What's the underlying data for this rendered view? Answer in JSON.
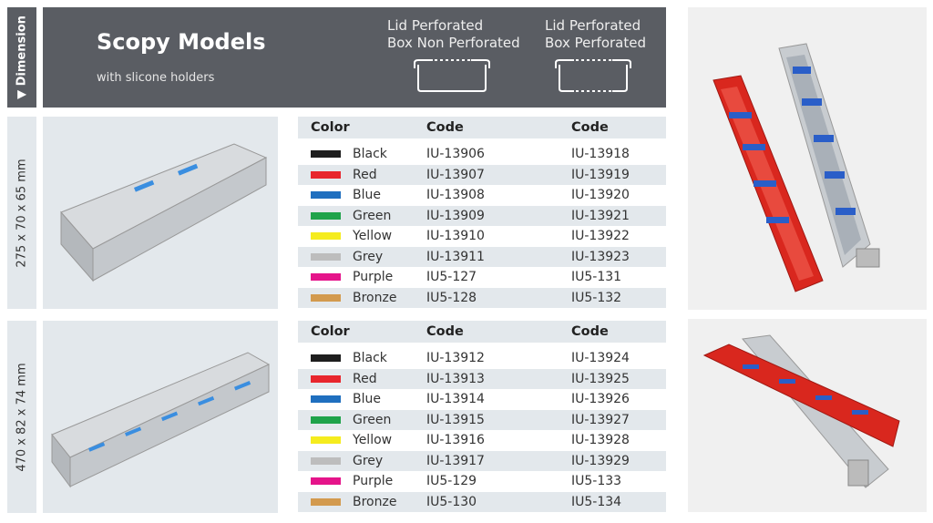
{
  "dimension_label": "Dimension",
  "header": {
    "title": "Scopy Models",
    "subtitle": "with slicone holders",
    "options": [
      {
        "line1": "Lid Perforated",
        "line2": "Box Non Perforated"
      },
      {
        "line1": "Lid Perforated",
        "line2": "Box Perforated"
      }
    ]
  },
  "tables": [
    {
      "dimension": "275 x 70 x 65 mm",
      "headers": [
        "Color",
        "Code",
        "Code"
      ],
      "rows": [
        {
          "color": "Black",
          "swatch": "#1e1e1e",
          "code1": "IU-13906",
          "code2": "IU-13918"
        },
        {
          "color": "Red",
          "swatch": "#e8262d",
          "code1": "IU-13907",
          "code2": "IU-13919"
        },
        {
          "color": "Blue",
          "swatch": "#1f6fbf",
          "code1": "IU-13908",
          "code2": "IU-13920"
        },
        {
          "color": "Green",
          "swatch": "#1fa34a",
          "code1": "IU-13909",
          "code2": "IU-13921"
        },
        {
          "color": "Yellow",
          "swatch": "#f5ec1e",
          "code1": "IU-13910",
          "code2": "IU-13922"
        },
        {
          "color": "Grey",
          "swatch": "#bdbdbd",
          "code1": "IU-13911",
          "code2": "IU-13923"
        },
        {
          "color": "Purple",
          "swatch": "#e5148a",
          "code1": "IU5-127",
          "code2": "IU5-131"
        },
        {
          "color": "Bronze",
          "swatch": "#d39a4e",
          "code1": "IU5-128",
          "code2": "IU5-132"
        }
      ]
    },
    {
      "dimension": "470 x 82 x 74 mm",
      "headers": [
        "Color",
        "Code",
        "Code"
      ],
      "rows": [
        {
          "color": "Black",
          "swatch": "#1e1e1e",
          "code1": "IU-13912",
          "code2": "IU-13924"
        },
        {
          "color": "Red",
          "swatch": "#e8262d",
          "code1": "IU-13913",
          "code2": "IU-13925"
        },
        {
          "color": "Blue",
          "swatch": "#1f6fbf",
          "code1": "IU-13914",
          "code2": "IU-13926"
        },
        {
          "color": "Green",
          "swatch": "#1fa34a",
          "code1": "IU-13915",
          "code2": "IU-13927"
        },
        {
          "color": "Yellow",
          "swatch": "#f5ec1e",
          "code1": "IU-13916",
          "code2": "IU-13928"
        },
        {
          "color": "Grey",
          "swatch": "#bdbdbd",
          "code1": "IU-13917",
          "code2": "IU-13929"
        },
        {
          "color": "Purple",
          "swatch": "#e5148a",
          "code1": "IU5-129",
          "code2": "IU5-133"
        },
        {
          "color": "Bronze",
          "swatch": "#d39a4e",
          "code1": "IU5-130",
          "code2": "IU5-134"
        }
      ]
    }
  ]
}
